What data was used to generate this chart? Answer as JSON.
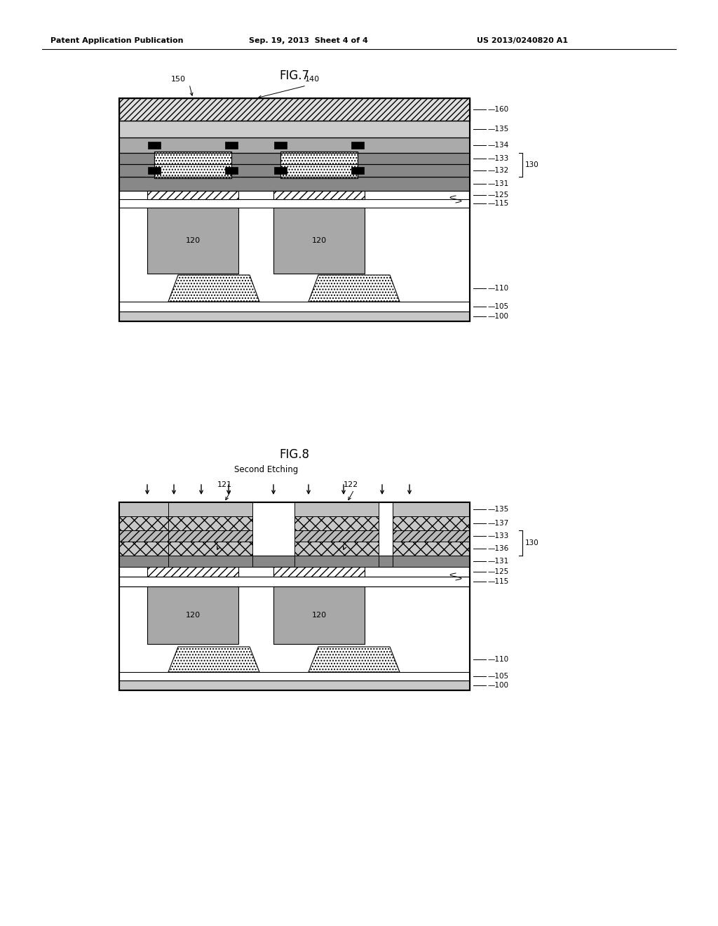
{
  "page_title_left": "Patent Application Publication",
  "page_title_mid": "Sep. 19, 2013  Sheet 4 of 4",
  "page_title_right": "US 2013/0240820 A1",
  "fig7_title": "FIG.7",
  "fig8_title": "FIG.8",
  "fig8_subtitle": "Second Etching",
  "background": "#ffffff",
  "gray_light": "#c8c8c8",
  "gray_mid": "#a0a0a0",
  "gray_dark": "#707070",
  "black": "#000000",
  "white": "#ffffff"
}
